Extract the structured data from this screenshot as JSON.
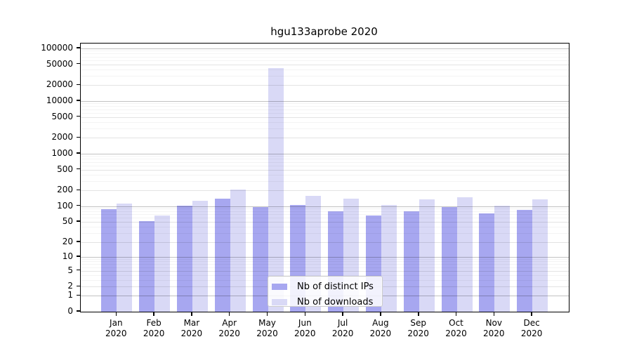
{
  "chart_data": {
    "type": "bar",
    "title": "hgu133aprobe 2020",
    "categories": [
      "Jan",
      "Feb",
      "Mar",
      "Apr",
      "May",
      "Jun",
      "Jul",
      "Aug",
      "Sep",
      "Oct",
      "Nov",
      "Dec"
    ],
    "x_year_label": "2020",
    "series": [
      {
        "name": "Nb of distinct IPs",
        "color": "#a7a7f0",
        "values": [
          88,
          51,
          103,
          140,
          97,
          107,
          81,
          66,
          80,
          95,
          73,
          84
        ]
      },
      {
        "name": "Nb of downloads",
        "color": "#d9d9f6",
        "values": [
          112,
          67,
          128,
          208,
          42000,
          160,
          139,
          105,
          137,
          149,
          101,
          137
        ]
      }
    ],
    "yticks": [
      0,
      1,
      2,
      5,
      10,
      20,
      50,
      100,
      200,
      500,
      1000,
      2000,
      5000,
      10000,
      20000,
      50000,
      100000
    ],
    "scale": "log1p",
    "ylim": [
      0,
      124000
    ],
    "grid": true,
    "legend_position": "lower-center"
  }
}
